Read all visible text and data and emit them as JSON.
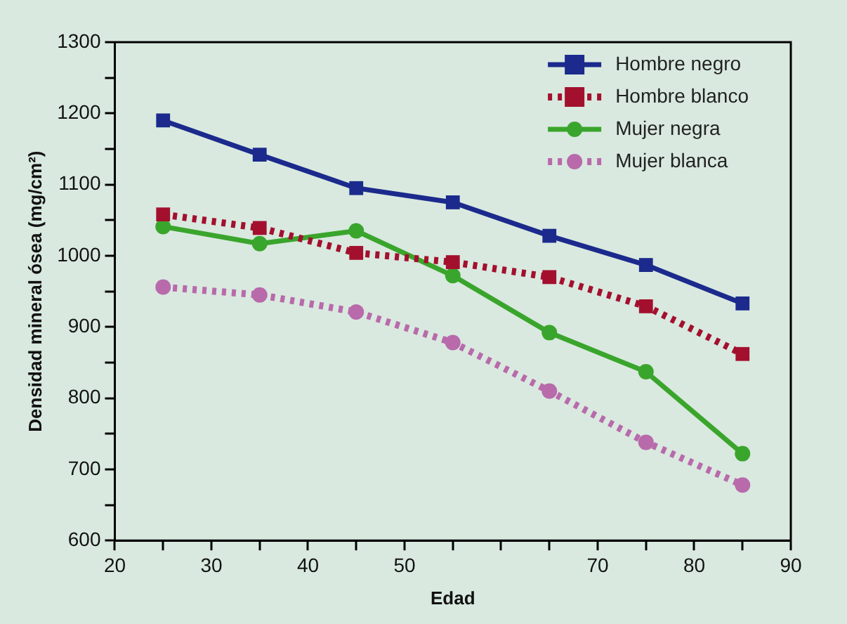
{
  "chart_data": {
    "type": "line",
    "xlabel": "Edad",
    "ylabel": "Densidad mineral ósea (mg/cm²)",
    "x": [
      25,
      35,
      45,
      55,
      65,
      75,
      85
    ],
    "series": [
      {
        "name": "Hombre negro",
        "color": "#1b2a8c",
        "marker": "square",
        "line_style": "solid",
        "values": [
          1190,
          1142,
          1095,
          1075,
          1028,
          987,
          933
        ]
      },
      {
        "name": "Hombre blanco",
        "color": "#a3102e",
        "marker": "square",
        "line_style": "dotted",
        "values": [
          1058,
          1039,
          1004,
          991,
          970,
          929,
          862
        ]
      },
      {
        "name": "Mujer negra",
        "color": "#3aa52c",
        "marker": "circle",
        "line_style": "solid",
        "values": [
          1041,
          1017,
          1035,
          972,
          892,
          837,
          722
        ]
      },
      {
        "name": "Mujer blanca",
        "color": "#b86aab",
        "marker": "circle",
        "line_style": "dotted",
        "values": [
          956,
          945,
          921,
          878,
          810,
          738,
          678
        ]
      }
    ],
    "xlim": [
      20,
      90
    ],
    "xticks": [
      20,
      {
        "value": 25,
        "label": null
      },
      30,
      {
        "value": 35,
        "label": null
      },
      40,
      {
        "value": 45,
        "label": null
      },
      50,
      {
        "value": 55,
        "label": null
      },
      {
        "value": 60,
        "label": null
      },
      {
        "value": 65,
        "label": null
      },
      70,
      {
        "value": 75,
        "label": null
      },
      80,
      {
        "value": 85,
        "label": null
      },
      90
    ],
    "ylim": [
      600,
      1300
    ],
    "yticks": [
      600,
      {
        "value": 650,
        "label": null
      },
      700,
      {
        "value": 750,
        "label": null
      },
      800,
      {
        "value": 850,
        "label": null
      },
      900,
      {
        "value": 950,
        "label": null
      },
      1000,
      {
        "value": 1050,
        "label": null
      },
      1100,
      {
        "value": 1150,
        "label": null
      },
      1200,
      {
        "value": 1250,
        "label": null
      },
      1300
    ],
    "grid": false,
    "legend": "top right"
  }
}
